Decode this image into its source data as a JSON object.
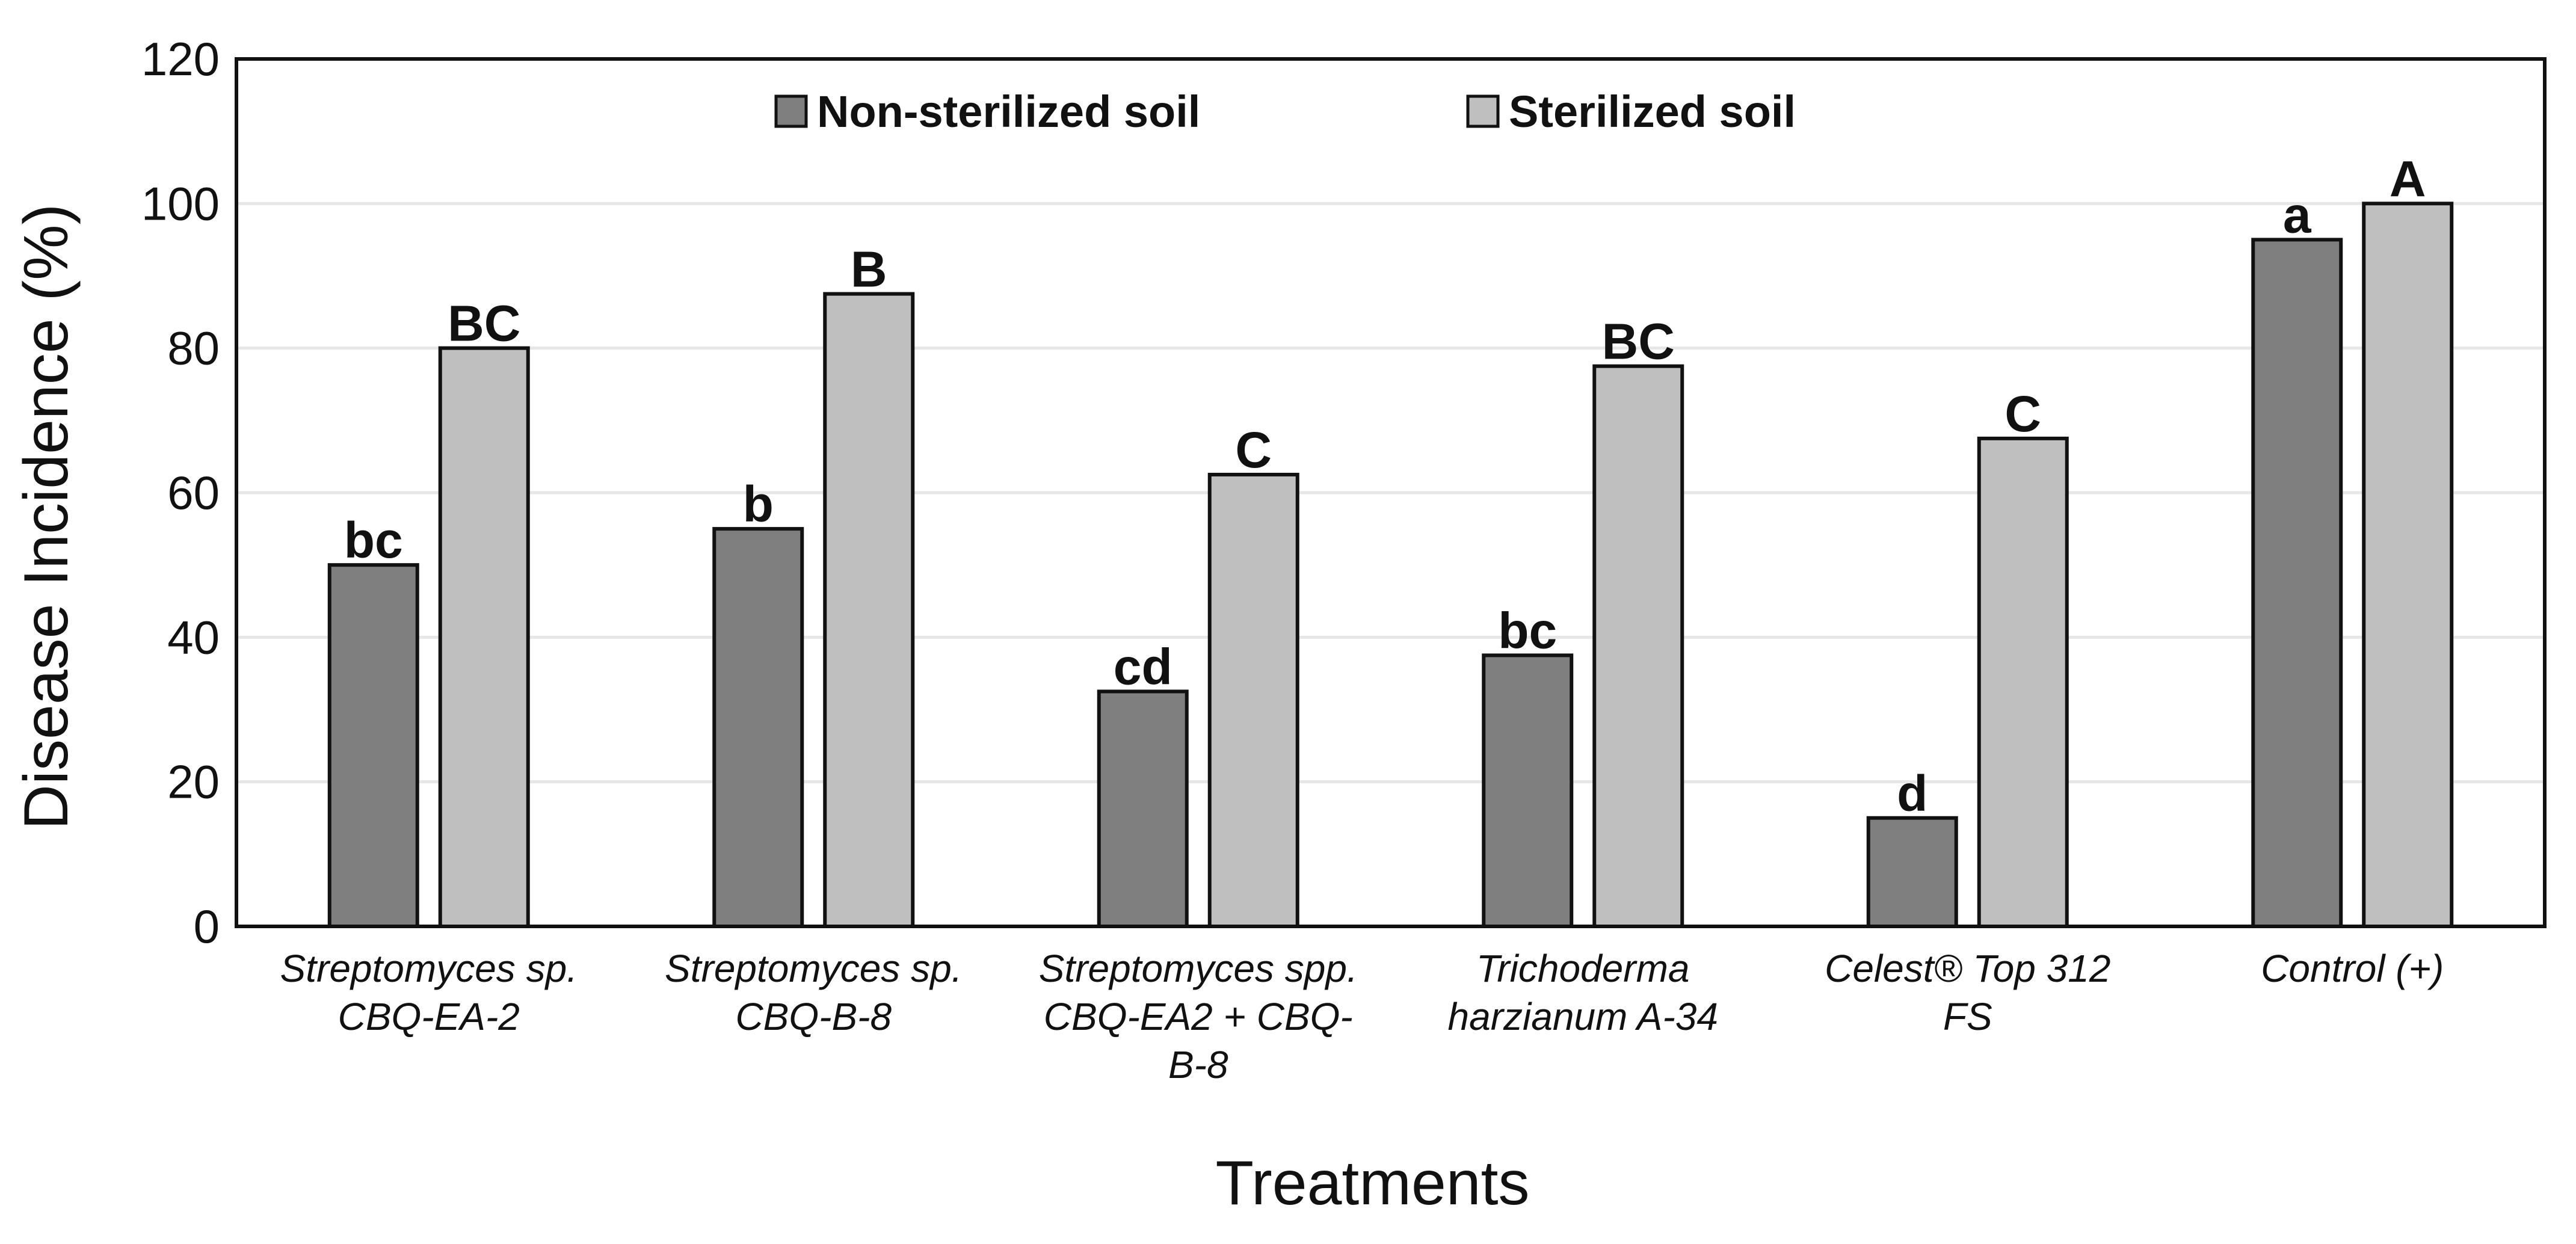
{
  "chart_data": {
    "type": "bar",
    "title": "",
    "xlabel": "Treatments",
    "ylabel": "Disease Incidence (%)",
    "ylim": [
      0,
      120
    ],
    "yticks": [
      0,
      20,
      40,
      60,
      80,
      100,
      120
    ],
    "grid": true,
    "legend_position": "top-center",
    "categories": [
      [
        "Streptomyces sp.",
        "CBQ-EA-2"
      ],
      [
        "Streptomyces sp.",
        "CBQ-B-8"
      ],
      [
        "Streptomyces spp.",
        "CBQ-EA2 + CBQ-",
        "B-8"
      ],
      [
        "Trichoderma",
        "harzianum A-34"
      ],
      [
        "Celest® Top 312",
        "FS"
      ],
      [
        "Control (+)"
      ]
    ],
    "series": [
      {
        "name": "Non-sterilized soil",
        "color": "#7f7f7f",
        "values": [
          50,
          55,
          32.5,
          37.5,
          15,
          95
        ],
        "labels": [
          "bc",
          "b",
          "cd",
          "bc",
          "d",
          "a"
        ]
      },
      {
        "name": "Sterilized soil",
        "color": "#bfbfbf",
        "values": [
          80,
          87.5,
          62.5,
          77.5,
          67.5,
          100
        ],
        "labels": [
          "BC",
          "B",
          "C",
          "BC",
          "C",
          "A"
        ]
      }
    ]
  }
}
